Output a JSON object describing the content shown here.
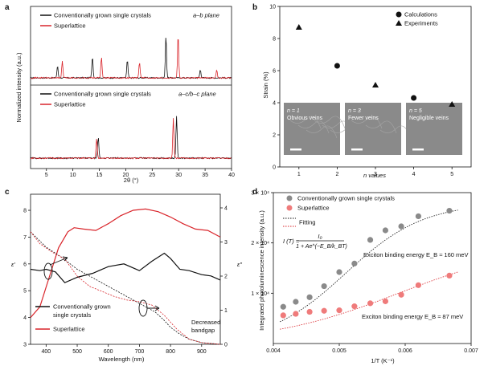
{
  "colors": {
    "black": "#111111",
    "red": "#d9242a",
    "pink": "#ef7b7b",
    "grey": "#8a8a8a",
    "green": "#3c8a3c",
    "inset_bg": "#8a8a8a"
  },
  "panel_labels": {
    "a": "a",
    "b": "b",
    "c": "c",
    "d": "d"
  },
  "chart_data": [
    {
      "panel": "a",
      "type": "line",
      "ylabel": "Normalized intensity (a.u.)",
      "xlabel": "2θ (°)",
      "xlim": [
        2,
        40
      ],
      "xticks": [
        "5",
        "10",
        "15",
        "20",
        "25",
        "30",
        "35",
        "40"
      ],
      "top": {
        "plane": "a–b plane",
        "legend": [
          "Conventionally grown single crystals",
          "Superlattice"
        ],
        "series": [
          {
            "name": "Conventionally grown single crystals",
            "peaks": [
              [
                7.1,
                0.25
              ],
              [
                13.7,
                0.45
              ],
              [
                20.3,
                0.37
              ],
              [
                27.6,
                0.9
              ],
              [
                34.1,
                0.18
              ]
            ]
          },
          {
            "name": "Superlattice",
            "peaks": [
              [
                8.0,
                0.35
              ],
              [
                15.4,
                0.43
              ],
              [
                22.6,
                0.33
              ],
              [
                29.9,
                0.92
              ],
              [
                37.2,
                0.16
              ]
            ]
          }
        ]
      },
      "bottom": {
        "plane": "a–c/b–c plane",
        "legend": [
          "Conventionally grown single crystals",
          "Superlattice"
        ],
        "series": [
          {
            "name": "Conventionally grown single crystals",
            "peaks": [
              [
                14.8,
                0.45
              ],
              [
                29.6,
                0.9
              ]
            ]
          },
          {
            "name": "Superlattice",
            "peaks": [
              [
                14.5,
                0.42
              ],
              [
                29.0,
                0.86
              ]
            ]
          }
        ]
      }
    },
    {
      "panel": "b",
      "type": "scatter",
      "ylabel": "Strain (%)",
      "xlabel": "n values",
      "ylim": [
        0,
        10
      ],
      "xlim": [
        0.5,
        5.5
      ],
      "yticks": [
        "0",
        "2",
        "4",
        "6",
        "8",
        "10"
      ],
      "xticks": [
        "1",
        "2",
        "3",
        "4",
        "5"
      ],
      "legend": [
        "Calculations",
        "Experiments"
      ],
      "series": [
        {
          "name": "Calculations",
          "marker": "circle",
          "x": [
            2,
            4
          ],
          "y": [
            6.3,
            4.3
          ]
        },
        {
          "name": "Experiments",
          "marker": "triangle",
          "x": [
            1,
            3,
            5
          ],
          "y": [
            8.7,
            5.1,
            3.9
          ]
        }
      ],
      "insets": [
        {
          "n": "n = 1",
          "caption": "Obvious veins"
        },
        {
          "n": "n = 3",
          "caption": "Fewer veins"
        },
        {
          "n": "n = 5",
          "caption": "Negligible veins"
        }
      ]
    },
    {
      "panel": "c",
      "type": "line",
      "xlabel": "Wavelength (nm)",
      "ylabel_left": "ε′",
      "ylabel_right": "ε″",
      "xlim": [
        350,
        960
      ],
      "ylim_left": [
        3,
        8.6
      ],
      "ylim_right": [
        0,
        4.4
      ],
      "xticks": [
        "400",
        "500",
        "600",
        "700",
        "800",
        "900"
      ],
      "yticks_left": [
        "3",
        "4",
        "5",
        "6",
        "7",
        "8"
      ],
      "yticks_right": [
        "0",
        "1",
        "2",
        "3",
        "4"
      ],
      "legend": [
        "Conventionally grown single crystals",
        "Superlattice"
      ],
      "annotation": "Decreased bandgap",
      "series": [
        {
          "name": "ε′ conventionally grown single crystals",
          "axis": "left",
          "style": "solid",
          "color": "black",
          "x": [
            350,
            380,
            400,
            430,
            460,
            500,
            550,
            600,
            650,
            700,
            740,
            780,
            800,
            830,
            860,
            900,
            930,
            960
          ],
          "y": [
            5.8,
            5.75,
            5.8,
            5.7,
            5.3,
            5.5,
            5.65,
            5.9,
            6.0,
            5.75,
            6.1,
            6.4,
            6.2,
            5.8,
            5.75,
            5.6,
            5.55,
            5.4
          ]
        },
        {
          "name": "ε′ superlattice",
          "axis": "left",
          "style": "solid",
          "color": "red",
          "x": [
            350,
            380,
            410,
            440,
            470,
            490,
            520,
            560,
            600,
            640,
            680,
            720,
            760,
            800,
            840,
            880,
            920,
            960
          ],
          "y": [
            4.0,
            4.4,
            5.5,
            6.6,
            7.2,
            7.35,
            7.3,
            7.25,
            7.5,
            7.8,
            8.0,
            8.05,
            7.95,
            7.75,
            7.5,
            7.3,
            7.25,
            7.0
          ]
        },
        {
          "name": "ε″ conventionally grown single crystals",
          "axis": "right",
          "style": "dashed",
          "color": "black",
          "x": [
            350,
            400,
            450,
            500,
            550,
            600,
            650,
            700,
            750,
            780,
            800,
            830,
            860,
            900,
            960
          ],
          "y": [
            3.3,
            2.85,
            2.55,
            2.2,
            1.95,
            1.7,
            1.45,
            1.2,
            0.95,
            0.7,
            0.5,
            0.3,
            0.15,
            0.05,
            0.0
          ]
        },
        {
          "name": "ε″ superlattice",
          "axis": "right",
          "style": "dashed",
          "color": "red",
          "x": [
            350,
            380,
            420,
            460,
            500,
            540,
            580,
            620,
            660,
            700,
            740,
            780,
            820,
            860,
            900,
            960
          ],
          "y": [
            3.3,
            2.95,
            2.7,
            2.5,
            2.0,
            1.7,
            1.55,
            1.4,
            1.3,
            1.25,
            1.15,
            0.85,
            0.45,
            0.15,
            0.05,
            0.0
          ]
        }
      ]
    },
    {
      "panel": "d",
      "type": "scatter",
      "xlabel": "1/T (K⁻¹)",
      "ylabel": "Integrated photoluminescence intensity (a.u.)",
      "xlim": [
        0.004,
        0.007
      ],
      "ylim": [
        0,
        30000
      ],
      "xticks": [
        "0.004",
        "0.005",
        "0.006",
        "0.007"
      ],
      "yticks": [
        "1 × 10⁴",
        "2 × 10⁴",
        "3 × 10⁴"
      ],
      "legend": [
        "Conventionally grown single crystals",
        "Superlattice",
        "Fitting"
      ],
      "equation": "I (T) = I₀ / (1 + Ae^(−E_B/k_BT))",
      "annotations": [
        "Exciton binding energy E_B ≈ 160 meV",
        "Exciton binding energy E_B ≈ 87 meV"
      ],
      "series": [
        {
          "name": "Conventionally grown single crystals",
          "color": "grey",
          "x": [
            0.00415,
            0.00434,
            0.00455,
            0.00477,
            0.005,
            0.00523,
            0.00547,
            0.0057,
            0.00594,
            0.0062,
            0.00667
          ],
          "y": [
            7300,
            8300,
            9200,
            11400,
            14200,
            15900,
            20600,
            22500,
            23300,
            25300,
            26400
          ]
        },
        {
          "name": "Superlattice",
          "color": "pink",
          "x": [
            0.00415,
            0.00434,
            0.00455,
            0.00477,
            0.005,
            0.00523,
            0.00547,
            0.0057,
            0.00594,
            0.0062,
            0.00667
          ],
          "y": [
            5600,
            5900,
            6300,
            6500,
            6600,
            7400,
            8000,
            8400,
            9700,
            11600,
            13500
          ]
        }
      ]
    }
  ],
  "text": {
    "a_top_legend1": "Conventionally grown single crystals",
    "a_top_legend2": "Superlattice",
    "a_top_plane": "a–b plane",
    "a_bot_legend1": "Conventionally grown single crystals",
    "a_bot_legend2": "Superlattice",
    "a_bot_plane": "a–c/b–c plane",
    "a_ylabel": "Normalized intensity (a.u.)",
    "a_xlabel": "2θ (°)",
    "b_legend1": "Calculations",
    "b_legend2": "Experiments",
    "b_ylabel": "Strain (%)",
    "b_xlabel": "n values",
    "c_legend1a": "Conventionally grown",
    "c_legend1b": "single crystals",
    "c_legend2": "Superlattice",
    "c_annot1": "Decreased",
    "c_annot2": "bandgap",
    "c_ylabel_left": "ε′",
    "c_ylabel_right": "ε″",
    "c_xlabel": "Wavelength (nm)",
    "d_legend1": "Conventionally grown single crystals",
    "d_legend2": "Superlattice",
    "d_legend3": "Fitting",
    "d_eq_lhs": "I (T) =",
    "d_eq_num": "I₀",
    "d_eq_den": "1 + Ae^(−E_B/k_BT)",
    "d_annot1": "Exciton binding energy E_B ≈ 160 meV",
    "d_annot2": "Exciton binding energy E_B ≈ 87 meV",
    "d_ylabel": "Integrated photoluminescence intensity (a.u.)",
    "d_xlabel": "1/T (K⁻¹)"
  }
}
